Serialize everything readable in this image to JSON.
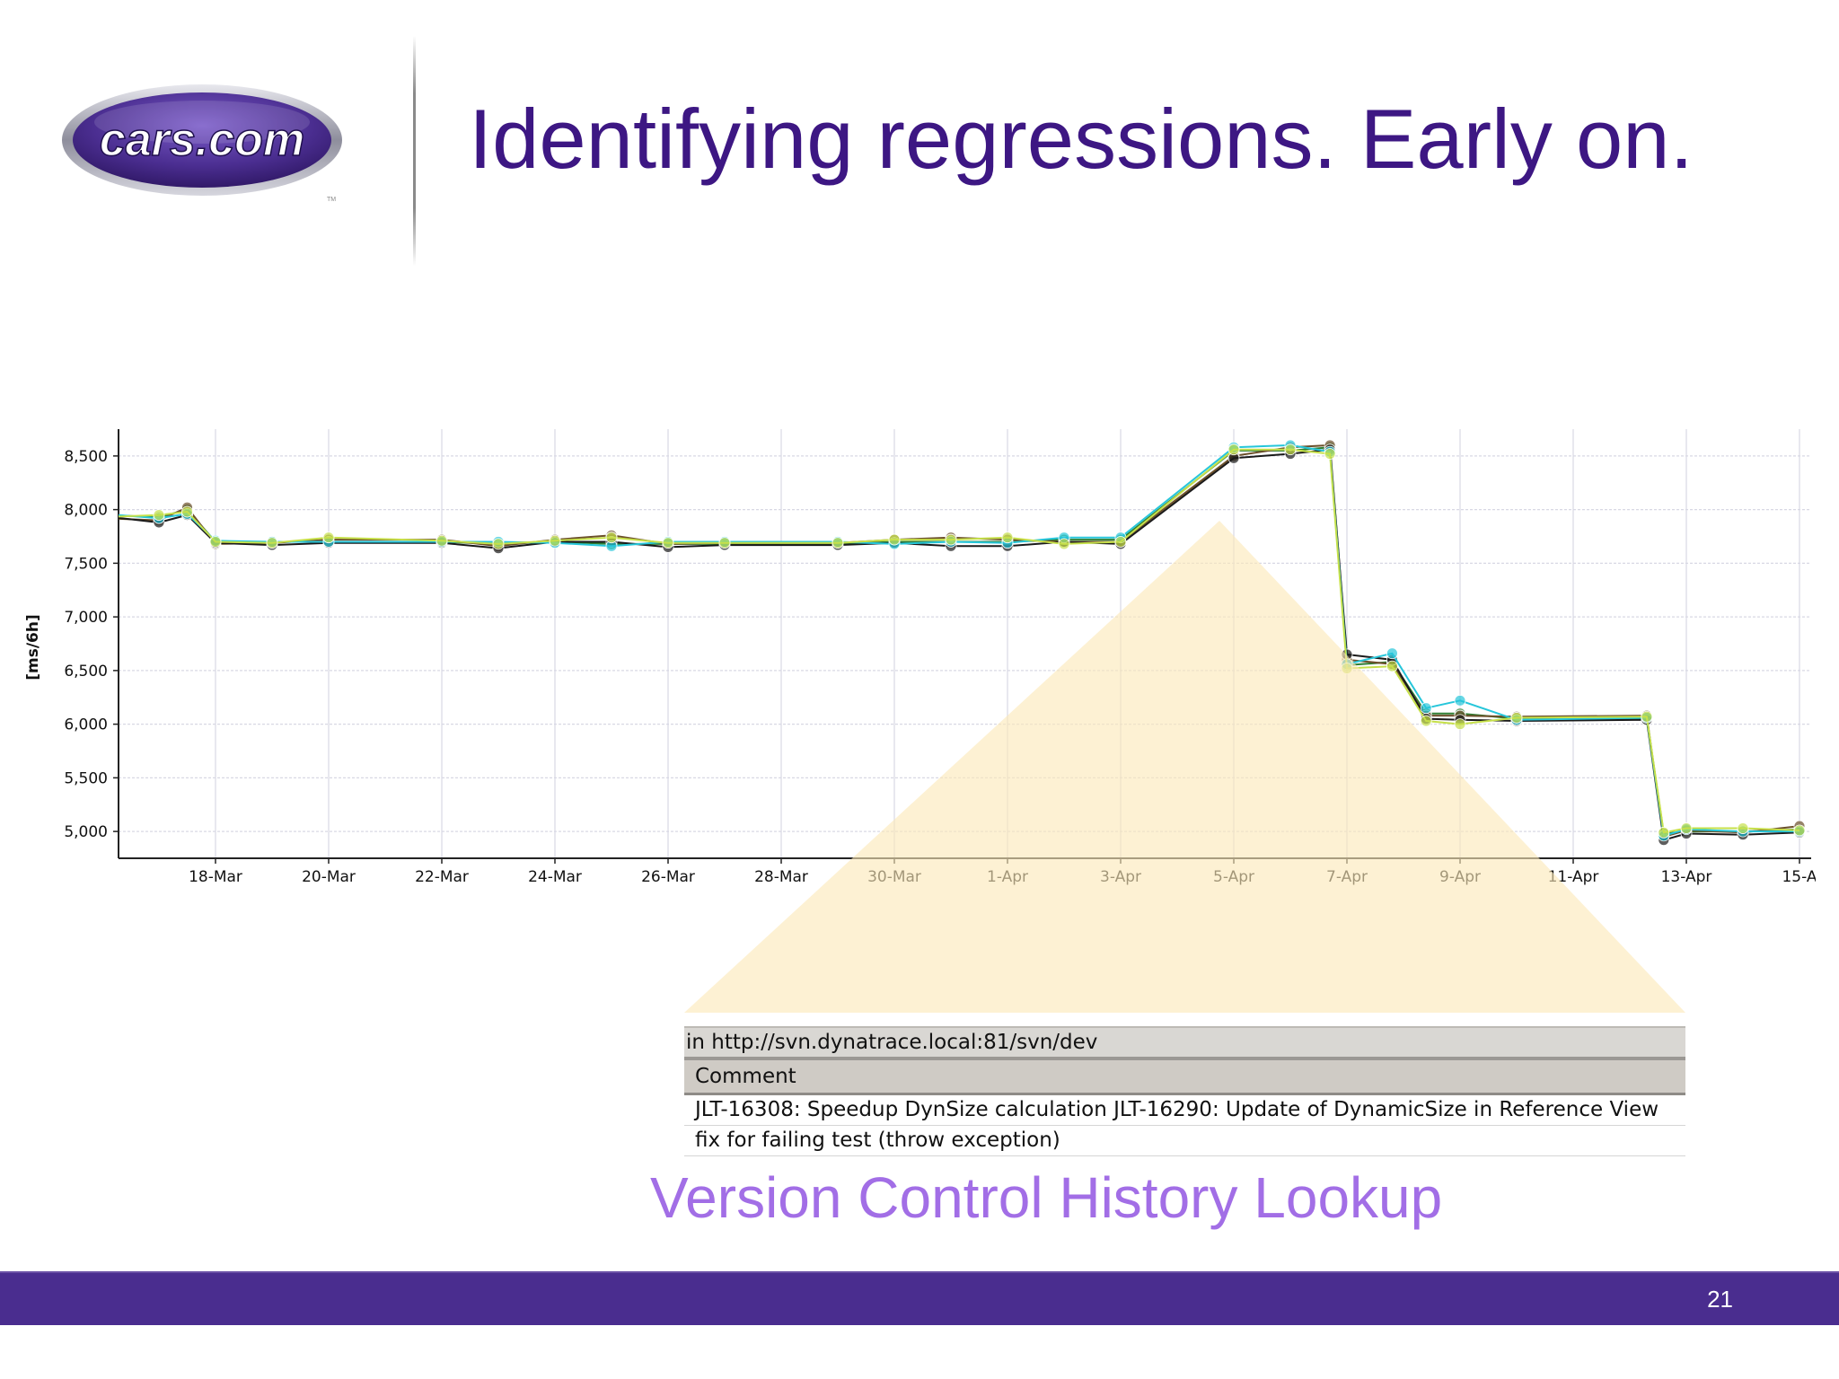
{
  "slide": {
    "title": "Identifying regressions. Early on.",
    "subtitle": "Version Control History Lookup",
    "page_number": "21"
  },
  "logo": {
    "text": "cars.com",
    "trademark": "TM",
    "colors": {
      "oval": "#4b2e91",
      "ring": "#9a9aa8",
      "text": "#ffffff"
    }
  },
  "svn": {
    "url_text": "in http://svn.dynatrace.local:81/svn/dev",
    "column_header": "Comment",
    "rows": [
      "JLT-16308: Speedup DynSize calculation JLT-16290: Update of DynamicSize in Reference View",
      "fix for failing test (throw exception)"
    ]
  },
  "colors": {
    "title": "#3d1783",
    "subtitle": "#a26ee6",
    "footer": "#4a2d8f",
    "callout": "#fce9b8"
  },
  "chart_data": {
    "type": "line",
    "ylabel": "[ms/6h]",
    "xlabel": "",
    "ylim": [
      4750,
      8750
    ],
    "y_ticks": [
      "5,000",
      "5,500",
      "6,000",
      "6,500",
      "7,000",
      "7,500",
      "8,000",
      "8,500"
    ],
    "x_ticks": [
      "18-Mar",
      "20-Mar",
      "22-Mar",
      "24-Mar",
      "26-Mar",
      "28-Mar",
      "30-Mar",
      "1-Apr",
      "3-Apr",
      "5-Apr",
      "7-Apr",
      "9-Apr",
      "11-Apr",
      "13-Apr",
      "15-A"
    ],
    "grid": true,
    "legend": "none",
    "series": [
      {
        "color": "#2e7d32",
        "points": [
          [
            "16-Mar",
            7950
          ],
          [
            "17-Mar",
            7930
          ],
          [
            "17.5-Mar",
            8000
          ],
          [
            "18-Mar",
            7700
          ],
          [
            "19-Mar",
            7700
          ],
          [
            "20-Mar",
            7700
          ],
          [
            "22-Mar",
            7700
          ],
          [
            "23-Mar",
            7680
          ],
          [
            "24-Mar",
            7700
          ],
          [
            "25-Mar",
            7680
          ],
          [
            "26-Mar",
            7680
          ],
          [
            "27-Mar",
            7680
          ],
          [
            "29-Mar",
            7680
          ],
          [
            "30-Mar",
            7700
          ],
          [
            "31-Mar",
            7700
          ],
          [
            "1-Apr",
            7700
          ],
          [
            "2-Apr",
            7720
          ],
          [
            "3-Apr",
            7720
          ],
          [
            "5-Apr",
            8550
          ],
          [
            "6-Apr",
            8550
          ],
          [
            "6.7-Apr",
            8580
          ],
          [
            "7-Apr",
            6550
          ],
          [
            "7.8-Apr",
            6580
          ],
          [
            "8.4-Apr",
            6100
          ],
          [
            "9-Apr",
            6100
          ],
          [
            "10-Apr",
            6050
          ],
          [
            "12.3-Apr",
            6050
          ],
          [
            "12.6-Apr",
            4980
          ],
          [
            "13-Apr",
            5000
          ],
          [
            "14-Apr",
            5000
          ],
          [
            "15-Apr",
            5020
          ]
        ]
      },
      {
        "color": "#6b4f2a",
        "points": [
          [
            "16-Mar",
            7920
          ],
          [
            "17-Mar",
            7900
          ],
          [
            "17.5-Mar",
            8020
          ],
          [
            "18-Mar",
            7680
          ],
          [
            "19-Mar",
            7690
          ],
          [
            "20-Mar",
            7720
          ],
          [
            "22-Mar",
            7720
          ],
          [
            "23-Mar",
            7660
          ],
          [
            "24-Mar",
            7720
          ],
          [
            "25-Mar",
            7760
          ],
          [
            "26-Mar",
            7680
          ],
          [
            "27-Mar",
            7690
          ],
          [
            "29-Mar",
            7690
          ],
          [
            "30-Mar",
            7720
          ],
          [
            "31-Mar",
            7740
          ],
          [
            "1-Apr",
            7720
          ],
          [
            "2-Apr",
            7700
          ],
          [
            "3-Apr",
            7700
          ],
          [
            "5-Apr",
            8500
          ],
          [
            "6-Apr",
            8580
          ],
          [
            "6.7-Apr",
            8600
          ],
          [
            "7-Apr",
            6600
          ],
          [
            "7.8-Apr",
            6560
          ],
          [
            "8.4-Apr",
            6080
          ],
          [
            "9-Apr",
            6080
          ],
          [
            "10-Apr",
            6070
          ],
          [
            "12.3-Apr",
            6080
          ],
          [
            "12.6-Apr",
            4950
          ],
          [
            "13-Apr",
            5010
          ],
          [
            "14-Apr",
            4990
          ],
          [
            "15-Apr",
            5050
          ]
        ]
      },
      {
        "color": "#1a1a1a",
        "points": [
          [
            "16-Mar",
            7940
          ],
          [
            "17-Mar",
            7880
          ],
          [
            "17.5-Mar",
            7950
          ],
          [
            "18-Mar",
            7690
          ],
          [
            "19-Mar",
            7670
          ],
          [
            "20-Mar",
            7690
          ],
          [
            "22-Mar",
            7690
          ],
          [
            "23-Mar",
            7640
          ],
          [
            "24-Mar",
            7700
          ],
          [
            "25-Mar",
            7700
          ],
          [
            "26-Mar",
            7650
          ],
          [
            "27-Mar",
            7670
          ],
          [
            "29-Mar",
            7670
          ],
          [
            "30-Mar",
            7690
          ],
          [
            "31-Mar",
            7660
          ],
          [
            "1-Apr",
            7660
          ],
          [
            "2-Apr",
            7700
          ],
          [
            "3-Apr",
            7680
          ],
          [
            "5-Apr",
            8480
          ],
          [
            "6-Apr",
            8520
          ],
          [
            "6.7-Apr",
            8560
          ],
          [
            "7-Apr",
            6650
          ],
          [
            "7.8-Apr",
            6600
          ],
          [
            "8.4-Apr",
            6050
          ],
          [
            "9-Apr",
            6040
          ],
          [
            "10-Apr",
            6030
          ],
          [
            "12.3-Apr",
            6040
          ],
          [
            "12.6-Apr",
            4920
          ],
          [
            "13-Apr",
            4980
          ],
          [
            "14-Apr",
            4970
          ],
          [
            "15-Apr",
            4990
          ]
        ]
      },
      {
        "color": "#26c6da",
        "points": [
          [
            "16-Mar",
            7960
          ],
          [
            "17-Mar",
            7920
          ],
          [
            "17.5-Mar",
            7960
          ],
          [
            "18-Mar",
            7710
          ],
          [
            "19-Mar",
            7700
          ],
          [
            "20-Mar",
            7700
          ],
          [
            "22-Mar",
            7700
          ],
          [
            "23-Mar",
            7700
          ],
          [
            "24-Mar",
            7690
          ],
          [
            "25-Mar",
            7660
          ],
          [
            "26-Mar",
            7700
          ],
          [
            "27-Mar",
            7700
          ],
          [
            "29-Mar",
            7700
          ],
          [
            "30-Mar",
            7680
          ],
          [
            "31-Mar",
            7700
          ],
          [
            "1-Apr",
            7690
          ],
          [
            "2-Apr",
            7740
          ],
          [
            "3-Apr",
            7740
          ],
          [
            "5-Apr",
            8580
          ],
          [
            "6-Apr",
            8600
          ],
          [
            "6.7-Apr",
            8540
          ],
          [
            "7-Apr",
            6560
          ],
          [
            "7.8-Apr",
            6660
          ],
          [
            "8.4-Apr",
            6150
          ],
          [
            "9-Apr",
            6220
          ],
          [
            "10-Apr",
            6040
          ],
          [
            "12.3-Apr",
            6060
          ],
          [
            "12.6-Apr",
            4960
          ],
          [
            "13-Apr",
            5020
          ],
          [
            "14-Apr",
            5000
          ],
          [
            "15-Apr",
            5000
          ]
        ]
      },
      {
        "color": "#c6e04a",
        "points": [
          [
            "16-Mar",
            7930
          ],
          [
            "17-Mar",
            7950
          ],
          [
            "17.5-Mar",
            7980
          ],
          [
            "18-Mar",
            7700
          ],
          [
            "19-Mar",
            7690
          ],
          [
            "20-Mar",
            7740
          ],
          [
            "22-Mar",
            7710
          ],
          [
            "23-Mar",
            7680
          ],
          [
            "24-Mar",
            7710
          ],
          [
            "25-Mar",
            7740
          ],
          [
            "26-Mar",
            7690
          ],
          [
            "27-Mar",
            7690
          ],
          [
            "29-Mar",
            7690
          ],
          [
            "30-Mar",
            7720
          ],
          [
            "31-Mar",
            7720
          ],
          [
            "1-Apr",
            7740
          ],
          [
            "2-Apr",
            7680
          ],
          [
            "3-Apr",
            7700
          ],
          [
            "5-Apr",
            8560
          ],
          [
            "6-Apr",
            8560
          ],
          [
            "6.7-Apr",
            8520
          ],
          [
            "7-Apr",
            6520
          ],
          [
            "7.8-Apr",
            6540
          ],
          [
            "8.4-Apr",
            6030
          ],
          [
            "9-Apr",
            6000
          ],
          [
            "10-Apr",
            6060
          ],
          [
            "12.3-Apr",
            6070
          ],
          [
            "12.6-Apr",
            4990
          ],
          [
            "13-Apr",
            5030
          ],
          [
            "14-Apr",
            5030
          ],
          [
            "15-Apr",
            5010
          ]
        ]
      }
    ]
  }
}
